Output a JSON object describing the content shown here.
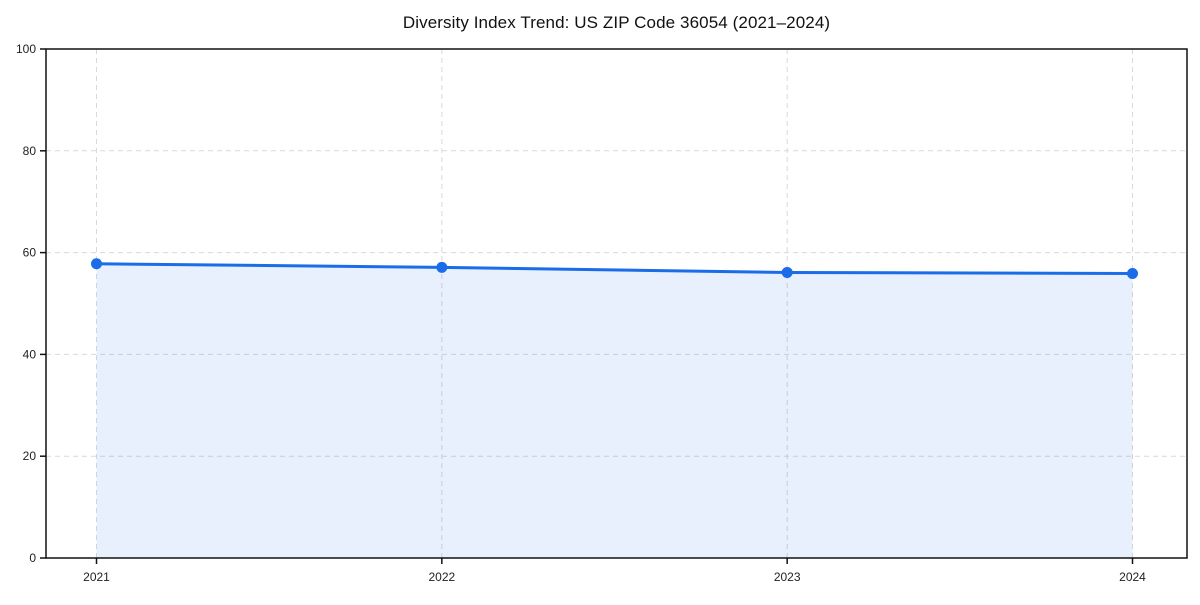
{
  "chart_data": {
    "type": "line",
    "title": "Diversity Index Trend: US ZIP Code 36054 (2021–2024)",
    "x": [
      "2021",
      "2022",
      "2023",
      "2024"
    ],
    "series": [
      {
        "name": "Diversity Index",
        "values": [
          57.8,
          57.1,
          56.1,
          55.9
        ]
      }
    ],
    "xlabel": "",
    "ylabel": "",
    "ylim": [
      0,
      100
    ],
    "yticks": [
      0,
      20,
      40,
      60,
      80,
      100
    ],
    "grid": true,
    "grid_style": "dashed",
    "legend_position": "none",
    "area_fill": true,
    "colors": {
      "line": "#1a6ce8",
      "marker": "#1a6ce8",
      "area": "rgba(26,108,232,0.10)",
      "gridline": "#d9d9d9",
      "axis": "#111111",
      "tick_label": "#222222"
    }
  }
}
